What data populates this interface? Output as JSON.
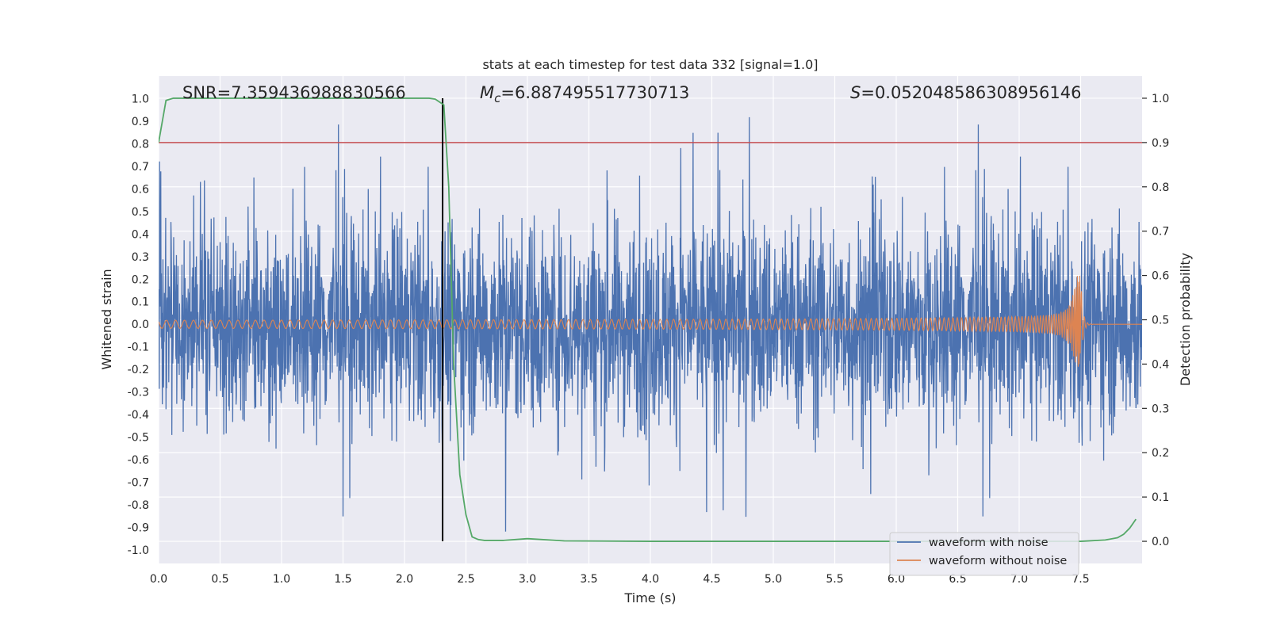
{
  "chart_data": {
    "type": "line",
    "title": "stats at each timestep for test data 332 [signal=1.0]",
    "xlabel": "Time (s)",
    "ylabel": "Whitened strain",
    "ylabel_right": "Detection probability",
    "xlim": [
      0.0,
      8.0
    ],
    "ylim": [
      -1.06,
      1.1
    ],
    "ylim_right": [
      -0.05,
      1.05
    ],
    "x_ticks": [
      0.0,
      0.5,
      1.0,
      1.5,
      2.0,
      2.5,
      3.0,
      3.5,
      4.0,
      4.5,
      5.0,
      5.5,
      6.0,
      6.5,
      7.0,
      7.5
    ],
    "x_tick_labels": [
      "0.0",
      "0.5",
      "1.0",
      "1.5",
      "2.0",
      "2.5",
      "3.0",
      "3.5",
      "4.0",
      "4.5",
      "5.0",
      "5.5",
      "6.0",
      "6.5",
      "7.0",
      "7.5"
    ],
    "y_ticks": [
      1.0,
      0.9,
      0.8,
      0.7,
      0.6,
      0.5,
      0.4,
      0.3,
      0.2,
      0.1,
      0.0,
      -0.1,
      -0.2,
      -0.3,
      -0.4,
      -0.5,
      -0.6,
      -0.7,
      -0.8,
      -0.9,
      -1.0
    ],
    "y_tick_labels": [
      "1.0",
      "0.9",
      "0.8",
      "0.7",
      "0.6",
      "0.5",
      "0.4",
      "0.3",
      "0.2",
      "0.1",
      "0.0",
      "-0.1",
      "-0.2",
      "-0.3",
      "-0.4",
      "-0.5",
      "-0.6",
      "-0.7",
      "-0.8",
      "-0.9",
      "-1.0"
    ],
    "y_right_ticks": [
      1.0,
      0.9,
      0.8,
      0.7,
      0.6,
      0.5,
      0.4,
      0.3,
      0.2,
      0.1,
      0.0
    ],
    "y_right_tick_labels": [
      "1.0",
      "0.9",
      "0.8",
      "0.7",
      "0.6",
      "0.5",
      "0.4",
      "0.3",
      "0.2",
      "0.1",
      "0.0"
    ],
    "grid": true,
    "legend_position": "lower-right",
    "annotations": {
      "snr": "SNR=7.359436988830566",
      "mc_symbol": "M",
      "mc_subscript": "c",
      "mc_value": "=6.887495517730713",
      "s_symbol": "S",
      "s_value": "=0.052048586308956146"
    },
    "threshold_line": {
      "y_right": 0.9,
      "color": "#c44e52"
    },
    "detection_time_line": {
      "x": 2.31,
      "color": "#000000"
    },
    "series": [
      {
        "name": "waveform with noise",
        "axis": "left",
        "color": "#4c72b0",
        "kind": "noise",
        "x_range": [
          0.0,
          8.0
        ],
        "typical_peak": 0.58,
        "max_peak": 0.94
      },
      {
        "name": "waveform without noise",
        "axis": "left",
        "color": "#dd8452",
        "kind": "chirp",
        "x_range": [
          0.0,
          8.0
        ],
        "start_amplitude": 0.018,
        "peak_amplitude": 0.22,
        "merger_time": 7.5
      },
      {
        "axis": "right",
        "color": "#55a868",
        "kind": "probability",
        "x": [
          0.0,
          0.06,
          0.12,
          0.2,
          0.5,
          1.0,
          1.5,
          2.0,
          2.2,
          2.25,
          2.32,
          2.36,
          2.4,
          2.45,
          2.5,
          2.55,
          2.6,
          2.65,
          2.7,
          2.8,
          3.0,
          3.3,
          4.0,
          5.0,
          6.0,
          7.0,
          7.5,
          7.7,
          7.8,
          7.85,
          7.9,
          7.95
        ],
        "values": [
          0.9,
          0.995,
          1.0,
          1.0,
          1.0,
          1.0,
          1.0,
          1.0,
          1.0,
          0.998,
          0.985,
          0.8,
          0.4,
          0.15,
          0.06,
          0.01,
          0.004,
          0.002,
          0.002,
          0.002,
          0.006,
          0.001,
          0.0,
          0.0,
          0.0,
          0.0,
          0.0,
          0.003,
          0.008,
          0.016,
          0.03,
          0.05
        ]
      }
    ]
  }
}
